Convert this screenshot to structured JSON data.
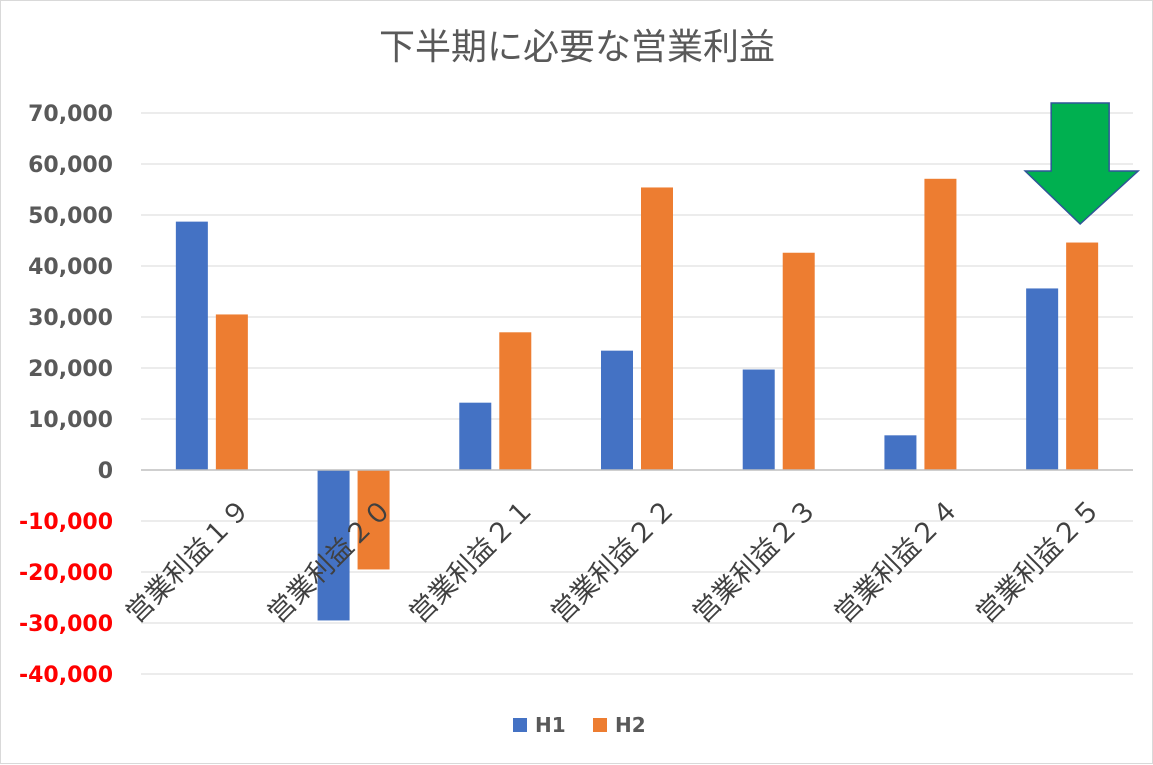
{
  "chart_data": {
    "type": "bar",
    "title": "下半期に必要な営業利益",
    "categories": [
      "営業利益１９",
      "営業利益２０",
      "営業利益２１",
      "営業利益２２",
      "営業利益２３",
      "営業利益２４",
      "営業利益２５"
    ],
    "series": [
      {
        "name": "H1",
        "color": "#4472C4",
        "values": [
          48700,
          -29500,
          13200,
          23400,
          19700,
          6800,
          35600
        ]
      },
      {
        "name": "H2",
        "color": "#ED7D31",
        "values": [
          30500,
          -19500,
          27000,
          55400,
          42600,
          57100,
          44600
        ]
      }
    ],
    "ylim": [
      -40000,
      70000
    ],
    "yticks": [
      "70,000",
      "60,000",
      "50,000",
      "40,000",
      "30,000",
      "20,000",
      "10,000",
      "0",
      "-10,000",
      "-20,000",
      "-30,000",
      "-40,000"
    ],
    "ytick_values": [
      70000,
      60000,
      50000,
      40000,
      30000,
      20000,
      10000,
      0,
      -10000,
      -20000,
      -30000,
      -40000
    ],
    "negative_tick_color": "#FF0000",
    "positive_tick_color": "#595959",
    "grid": true,
    "legend_position": "bottom",
    "annotation": {
      "type": "arrow-down",
      "color": "#00B050",
      "target_category": "営業利益２５"
    }
  }
}
